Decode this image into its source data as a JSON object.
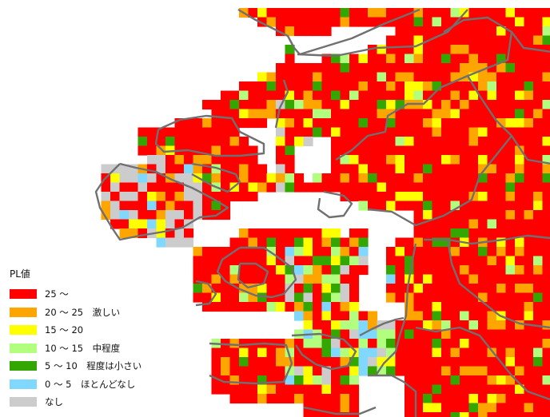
{
  "map": {
    "colors": {
      "25_plus": "#ff0000",
      "20_25": "#ffa500",
      "15_20": "#ffff00",
      "10_15": "#b2ff80",
      "5_10": "#33a600",
      "0_5": "#80d8ff",
      "none": "#cccccc",
      "boundary": "#707070"
    }
  },
  "legend": {
    "title": "PL値",
    "items": [
      {
        "label": "25 ～",
        "color": "#ff0000"
      },
      {
        "label": "20 ～ 25　激しい",
        "color": "#ffa500"
      },
      {
        "label": "15 ～ 20",
        "color": "#ffff00"
      },
      {
        "label": "10 ～ 15　中程度",
        "color": "#b2ff80"
      },
      {
        "label": "5 ～ 10　程度は小さい",
        "color": "#33a600"
      },
      {
        "label": "0 ～ 5　ほとんどなし",
        "color": "#80d8ff"
      },
      {
        "label": "なし",
        "color": "#cccccc"
      }
    ]
  }
}
